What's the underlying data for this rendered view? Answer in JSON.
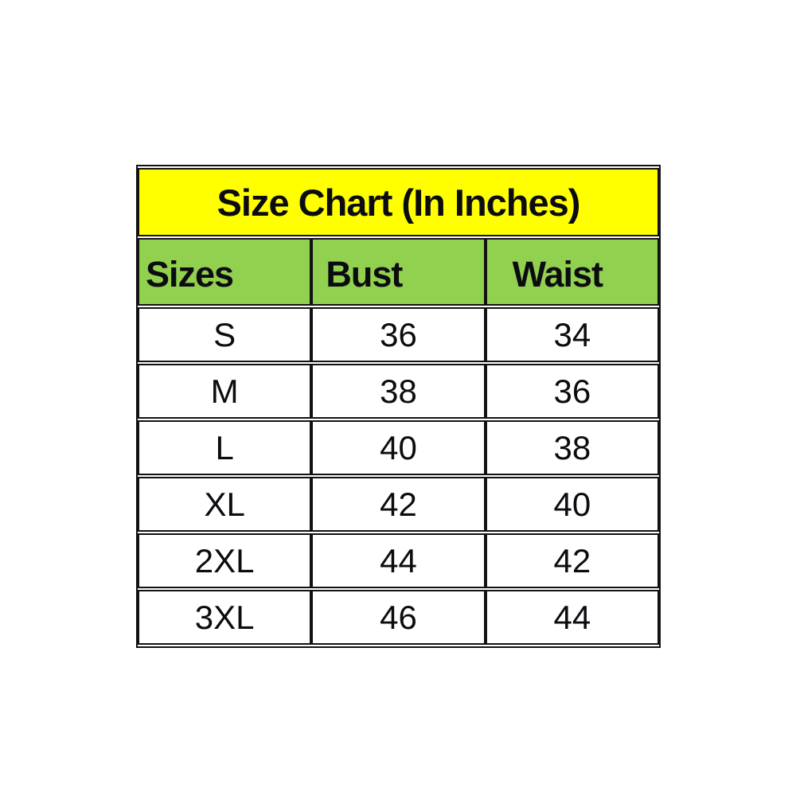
{
  "chart_data": {
    "type": "table",
    "title": "Size Chart (In Inches)",
    "columns": [
      "Sizes",
      "Bust",
      "Waist"
    ],
    "rows": [
      [
        "S",
        "36",
        "34"
      ],
      [
        "M",
        "38",
        "36"
      ],
      [
        "L",
        "40",
        "38"
      ],
      [
        "XL",
        "42",
        "40"
      ],
      [
        "2XL",
        "44",
        "42"
      ],
      [
        "3XL",
        "46",
        "44"
      ]
    ],
    "layout_hints": {
      "title_align": "center",
      "header_align": "left",
      "data_align": "center",
      "grid": "on"
    }
  },
  "colors": {
    "title_bg": "#ffff00",
    "header_bg": "#92d050",
    "border": "#121212",
    "text": "#0c0c10",
    "page_bg": "#ffffff"
  }
}
